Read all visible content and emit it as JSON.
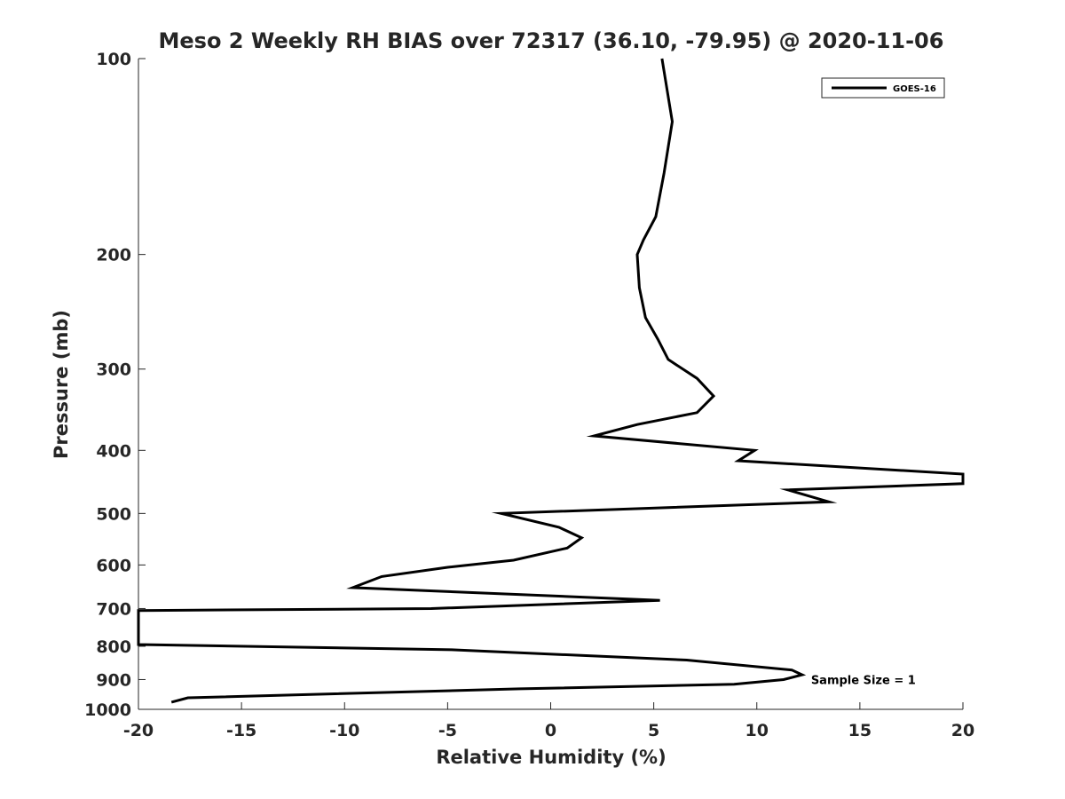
{
  "chart_data": {
    "type": "line",
    "title": "Meso 2 Weekly RH BIAS over 72317 (36.10, -79.95) @ 2020-11-06",
    "xlabel": "Relative Humidity (%)",
    "ylabel": "Pressure (mb)",
    "xlim": [
      -20,
      20
    ],
    "ylim": [
      100,
      1000
    ],
    "y_scale": "log",
    "y_inverted": true,
    "grid": false,
    "legend_position": "top-right",
    "x_ticks": [
      -20,
      -15,
      -10,
      -5,
      0,
      5,
      10,
      15,
      20
    ],
    "x_tick_labels": [
      "-20",
      "-15",
      "-10",
      "-5",
      "0",
      "5",
      "10",
      "15",
      "20"
    ],
    "y_ticks": [
      100,
      200,
      300,
      400,
      500,
      600,
      700,
      800,
      900,
      1000
    ],
    "y_tick_labels": [
      "100",
      "200",
      "300",
      "400",
      "500",
      "600",
      "700",
      "800",
      "900",
      "1000"
    ],
    "series": [
      {
        "name": "GOES-16",
        "color": "#000000",
        "points": [
          {
            "x": 5.4,
            "y": 100
          },
          {
            "x": 5.9,
            "y": 125
          },
          {
            "x": 5.5,
            "y": 150
          },
          {
            "x": 5.1,
            "y": 175
          },
          {
            "x": 4.5,
            "y": 190
          },
          {
            "x": 4.2,
            "y": 200
          },
          {
            "x": 4.3,
            "y": 225
          },
          {
            "x": 4.6,
            "y": 250
          },
          {
            "x": 5.2,
            "y": 270
          },
          {
            "x": 5.7,
            "y": 290
          },
          {
            "x": 7.1,
            "y": 310
          },
          {
            "x": 7.9,
            "y": 330
          },
          {
            "x": 7.1,
            "y": 350
          },
          {
            "x": 4.2,
            "y": 365
          },
          {
            "x": 2.1,
            "y": 380
          },
          {
            "x": 9.9,
            "y": 400
          },
          {
            "x": 9.1,
            "y": 415
          },
          {
            "x": 20.0,
            "y": 435
          },
          {
            "x": 20.0,
            "y": 450
          },
          {
            "x": 11.5,
            "y": 460
          },
          {
            "x": 13.5,
            "y": 480
          },
          {
            "x": -2.4,
            "y": 500
          },
          {
            "x": 0.4,
            "y": 525
          },
          {
            "x": 1.5,
            "y": 545
          },
          {
            "x": 0.8,
            "y": 565
          },
          {
            "x": -1.8,
            "y": 590
          },
          {
            "x": -5.0,
            "y": 605
          },
          {
            "x": -8.2,
            "y": 625
          },
          {
            "x": -9.6,
            "y": 650
          },
          {
            "x": 5.3,
            "y": 680
          },
          {
            "x": -5.8,
            "y": 700
          },
          {
            "x": -20.0,
            "y": 705
          },
          {
            "x": -20.0,
            "y": 795
          },
          {
            "x": -4.8,
            "y": 810
          },
          {
            "x": 6.6,
            "y": 840
          },
          {
            "x": 11.7,
            "y": 870
          },
          {
            "x": 12.2,
            "y": 885
          },
          {
            "x": 11.3,
            "y": 900
          },
          {
            "x": 8.9,
            "y": 915
          },
          {
            "x": -1.5,
            "y": 930
          },
          {
            "x": -17.6,
            "y": 960
          },
          {
            "x": -18.4,
            "y": 975
          }
        ]
      }
    ],
    "annotations": [
      {
        "text": "Sample Size = 1",
        "x": 12.5,
        "y": 900
      }
    ]
  }
}
